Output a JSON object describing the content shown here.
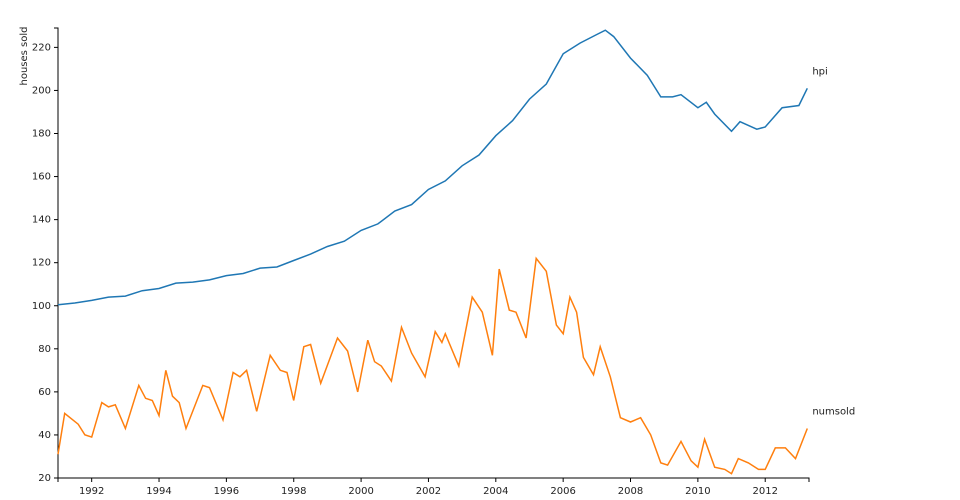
{
  "chart_data": {
    "type": "line",
    "y_label": "houses sold",
    "xlim": [
      1991,
      2013.3
    ],
    "ylim": [
      20,
      229
    ],
    "xticks": [
      1992,
      1994,
      1996,
      1998,
      2000,
      2002,
      2004,
      2006,
      2008,
      2010,
      2012
    ],
    "yticks": [
      20,
      40,
      60,
      80,
      100,
      120,
      140,
      160,
      180,
      200,
      220
    ],
    "grid": false,
    "series": [
      {
        "name": "hpi",
        "color": "#1f77b4",
        "x": [
          1991.0,
          1991.5,
          1992.0,
          1992.5,
          1993.0,
          1993.5,
          1994.0,
          1994.5,
          1995.0,
          1995.5,
          1996.0,
          1996.5,
          1997.0,
          1997.5,
          1998.0,
          1998.5,
          1999.0,
          1999.5,
          2000.0,
          2000.5,
          2001.0,
          2001.5,
          2002.0,
          2002.5,
          2003.0,
          2003.5,
          2004.0,
          2004.5,
          2005.0,
          2005.5,
          2006.0,
          2006.5,
          2007.0,
          2007.25,
          2007.5,
          2008.0,
          2008.5,
          2008.9,
          2009.25,
          2009.5,
          2010.0,
          2010.25,
          2010.5,
          2011.0,
          2011.25,
          2011.75,
          2012.0,
          2012.5,
          2013.0,
          2013.25
        ],
        "values": [
          100.5,
          101.3,
          102.5,
          104,
          104.5,
          107,
          108,
          110.5,
          111,
          112,
          114,
          115,
          117.5,
          118,
          121,
          124,
          127.5,
          130,
          135,
          138,
          144,
          147,
          154,
          158,
          165,
          170,
          179,
          186,
          196,
          203,
          217,
          222,
          226,
          228,
          225,
          215,
          207,
          197,
          197,
          198,
          192,
          194.5,
          189,
          181,
          185.5,
          182,
          183,
          192,
          193,
          201
        ]
      },
      {
        "name": "numsold",
        "color": "#ff7f0e",
        "x": [
          1991.0,
          1991.2,
          1991.6,
          1991.8,
          1992.0,
          1992.3,
          1992.5,
          1992.7,
          1993.0,
          1993.4,
          1993.6,
          1993.8,
          1994.0,
          1994.2,
          1994.4,
          1994.6,
          1994.8,
          1995.3,
          1995.5,
          1995.9,
          1996.2,
          1996.4,
          1996.6,
          1996.9,
          1997.3,
          1997.6,
          1997.8,
          1998.0,
          1998.3,
          1998.5,
          1998.8,
          1999.3,
          1999.6,
          1999.9,
          2000.2,
          2000.4,
          2000.6,
          2000.9,
          2001.2,
          2001.5,
          2001.9,
          2002.2,
          2002.4,
          2002.5,
          2002.9,
          2003.3,
          2003.6,
          2003.9,
          2004.1,
          2004.4,
          2004.6,
          2004.9,
          2005.2,
          2005.5,
          2005.8,
          2006.0,
          2006.2,
          2006.4,
          2006.6,
          2006.9,
          2007.1,
          2007.4,
          2007.7,
          2008.0,
          2008.3,
          2008.6,
          2008.9,
          2009.1,
          2009.5,
          2009.8,
          2010.0,
          2010.2,
          2010.5,
          2010.8,
          2011.0,
          2011.2,
          2011.5,
          2011.8,
          2012.0,
          2012.3,
          2012.6,
          2012.9,
          2013.25
        ],
        "values": [
          31,
          50,
          45,
          40,
          39,
          55,
          53,
          54,
          43,
          63,
          57,
          56,
          49,
          70,
          58,
          55,
          43,
          63,
          62,
          47,
          69,
          67,
          70,
          51,
          77,
          70,
          69,
          56,
          81,
          82,
          64,
          85,
          79,
          60,
          84,
          74,
          72,
          65,
          90,
          78,
          67,
          88,
          83,
          87,
          72,
          104,
          97,
          77,
          117,
          98,
          97,
          85,
          122,
          116,
          91,
          87,
          104,
          97,
          76,
          68,
          81,
          67,
          48,
          46,
          48,
          40,
          27,
          26,
          37,
          28,
          25,
          38,
          25,
          24,
          22,
          29,
          27,
          24,
          24,
          34,
          34,
          29,
          43
        ]
      }
    ]
  }
}
